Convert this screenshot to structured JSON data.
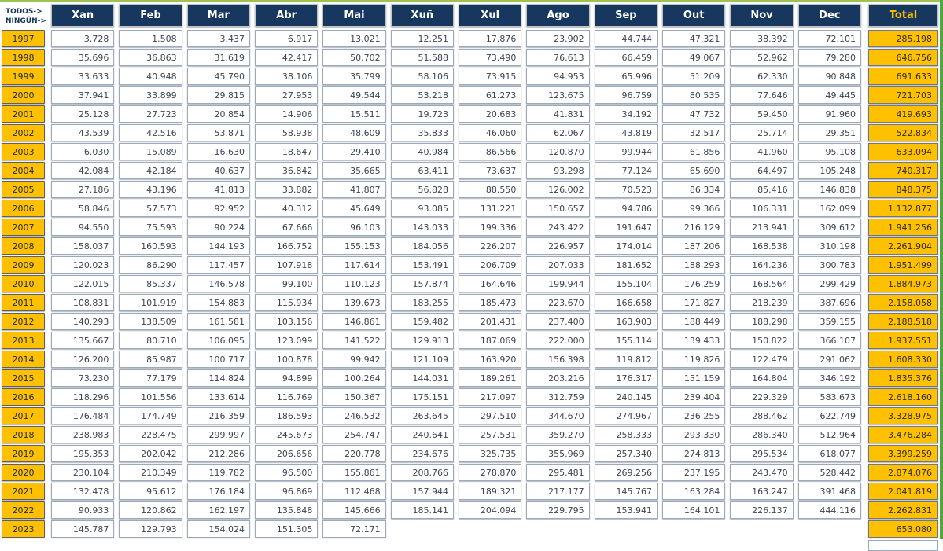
{
  "controls": {
    "select_all_label": "TODOS->",
    "select_none_label": "NINGÚN->"
  },
  "table": {
    "month_headers": [
      "Xan",
      "Feb",
      "Mar",
      "Abr",
      "Mai",
      "Xuñ",
      "Xul",
      "Ago",
      "Sep",
      "Out",
      "Nov",
      "Dec"
    ],
    "total_header": "Total",
    "rows": [
      {
        "year": "1997",
        "values": [
          "3.728",
          "1.508",
          "3.437",
          "6.917",
          "13.021",
          "12.251",
          "17.876",
          "23.902",
          "44.744",
          "47.321",
          "38.392",
          "72.101"
        ],
        "total": "285.198"
      },
      {
        "year": "1998",
        "values": [
          "35.696",
          "36.863",
          "31.619",
          "42.417",
          "50.702",
          "51.588",
          "73.490",
          "76.613",
          "66.459",
          "49.067",
          "52.962",
          "79.280"
        ],
        "total": "646.756"
      },
      {
        "year": "1999",
        "values": [
          "33.633",
          "40.948",
          "45.790",
          "38.106",
          "35.799",
          "58.106",
          "73.915",
          "94.953",
          "65.996",
          "51.209",
          "62.330",
          "90.848"
        ],
        "total": "691.633"
      },
      {
        "year": "2000",
        "values": [
          "37.941",
          "33.899",
          "29.815",
          "27.953",
          "49.544",
          "53.218",
          "61.273",
          "123.675",
          "96.759",
          "80.535",
          "77.646",
          "49.445"
        ],
        "total": "721.703"
      },
      {
        "year": "2001",
        "values": [
          "25.128",
          "27.723",
          "20.854",
          "14.906",
          "15.511",
          "19.723",
          "20.683",
          "41.831",
          "34.192",
          "47.732",
          "59.450",
          "91.960"
        ],
        "total": "419.693"
      },
      {
        "year": "2002",
        "values": [
          "43.539",
          "42.516",
          "53.871",
          "58.938",
          "48.609",
          "35.833",
          "46.060",
          "62.067",
          "43.819",
          "32.517",
          "25.714",
          "29.351"
        ],
        "total": "522.834"
      },
      {
        "year": "2003",
        "values": [
          "6.030",
          "15.089",
          "16.630",
          "18.647",
          "29.410",
          "40.984",
          "86.566",
          "120.870",
          "99.944",
          "61.856",
          "41.960",
          "95.108"
        ],
        "total": "633.094"
      },
      {
        "year": "2004",
        "values": [
          "42.084",
          "42.184",
          "40.637",
          "36.842",
          "35.665",
          "63.411",
          "73.637",
          "93.298",
          "77.124",
          "65.690",
          "64.497",
          "105.248"
        ],
        "total": "740.317"
      },
      {
        "year": "2005",
        "values": [
          "27.186",
          "43.196",
          "41.813",
          "33.882",
          "41.807",
          "56.828",
          "88.550",
          "126.002",
          "70.523",
          "86.334",
          "85.416",
          "146.838"
        ],
        "total": "848.375"
      },
      {
        "year": "2006",
        "values": [
          "58.846",
          "57.573",
          "92.952",
          "40.312",
          "45.649",
          "93.085",
          "131.221",
          "150.657",
          "94.786",
          "99.366",
          "106.331",
          "162.099"
        ],
        "total": "1.132.877"
      },
      {
        "year": "2007",
        "values": [
          "94.550",
          "75.593",
          "90.224",
          "67.666",
          "96.103",
          "143.033",
          "199.336",
          "243.422",
          "191.647",
          "216.129",
          "213.941",
          "309.612"
        ],
        "total": "1.941.256"
      },
      {
        "year": "2008",
        "values": [
          "158.037",
          "160.593",
          "144.193",
          "166.752",
          "155.153",
          "184.056",
          "226.207",
          "226.957",
          "174.014",
          "187.206",
          "168.538",
          "310.198"
        ],
        "total": "2.261.904"
      },
      {
        "year": "2009",
        "values": [
          "120.023",
          "86.290",
          "117.457",
          "107.918",
          "117.614",
          "153.491",
          "206.709",
          "207.033",
          "181.652",
          "188.293",
          "164.236",
          "300.783"
        ],
        "total": "1.951.499"
      },
      {
        "year": "2010",
        "values": [
          "122.015",
          "85.337",
          "146.578",
          "99.100",
          "110.123",
          "157.874",
          "164.646",
          "199.944",
          "155.104",
          "176.259",
          "168.564",
          "299.429"
        ],
        "total": "1.884.973"
      },
      {
        "year": "2011",
        "values": [
          "108.831",
          "101.919",
          "154.883",
          "115.934",
          "139.673",
          "183.255",
          "185.473",
          "223.670",
          "166.658",
          "171.827",
          "218.239",
          "387.696"
        ],
        "total": "2.158.058"
      },
      {
        "year": "2012",
        "values": [
          "140.293",
          "138.509",
          "161.581",
          "103.156",
          "146.861",
          "159.482",
          "201.431",
          "237.400",
          "163.903",
          "188.449",
          "188.298",
          "359.155"
        ],
        "total": "2.188.518"
      },
      {
        "year": "2013",
        "values": [
          "135.667",
          "80.710",
          "106.095",
          "123.099",
          "141.522",
          "129.913",
          "187.069",
          "222.000",
          "155.114",
          "139.433",
          "150.822",
          "366.107"
        ],
        "total": "1.937.551"
      },
      {
        "year": "2014",
        "values": [
          "126.200",
          "85.987",
          "100.717",
          "100.878",
          "99.942",
          "121.109",
          "163.920",
          "156.398",
          "119.812",
          "119.826",
          "122.479",
          "291.062"
        ],
        "total": "1.608.330"
      },
      {
        "year": "2015",
        "values": [
          "73.230",
          "77.179",
          "114.824",
          "94.899",
          "100.264",
          "144.031",
          "189.261",
          "203.216",
          "176.317",
          "151.159",
          "164.804",
          "346.192"
        ],
        "total": "1.835.376"
      },
      {
        "year": "2016",
        "values": [
          "118.296",
          "101.556",
          "133.614",
          "116.769",
          "150.367",
          "175.151",
          "217.097",
          "312.759",
          "240.145",
          "239.404",
          "229.329",
          "583.673"
        ],
        "total": "2.618.160"
      },
      {
        "year": "2017",
        "values": [
          "176.484",
          "174.749",
          "216.359",
          "186.593",
          "246.532",
          "263.645",
          "297.510",
          "344.670",
          "274.967",
          "236.255",
          "288.462",
          "622.749"
        ],
        "total": "3.328.975"
      },
      {
        "year": "2018",
        "values": [
          "238.983",
          "228.475",
          "299.997",
          "245.673",
          "254.747",
          "240.641",
          "257.531",
          "359.270",
          "258.333",
          "293.330",
          "286.340",
          "512.964"
        ],
        "total": "3.476.284"
      },
      {
        "year": "2019",
        "values": [
          "195.353",
          "202.042",
          "212.286",
          "206.656",
          "220.778",
          "234.676",
          "325.735",
          "355.969",
          "257.340",
          "274.813",
          "295.534",
          "618.077"
        ],
        "total": "3.399.259"
      },
      {
        "year": "2020",
        "values": [
          "230.104",
          "210.349",
          "119.782",
          "96.500",
          "155.861",
          "208.766",
          "278.870",
          "295.481",
          "269.256",
          "237.195",
          "243.470",
          "528.442"
        ],
        "total": "2.874.076"
      },
      {
        "year": "2021",
        "values": [
          "132.478",
          "95.612",
          "176.184",
          "96.869",
          "112.468",
          "157.944",
          "189.321",
          "217.177",
          "145.767",
          "163.284",
          "163.247",
          "391.468"
        ],
        "total": "2.041.819"
      },
      {
        "year": "2022",
        "values": [
          "90.933",
          "120.862",
          "162.197",
          "135.848",
          "145.666",
          "185.141",
          "204.094",
          "229.795",
          "153.941",
          "164.101",
          "226.137",
          "444.116"
        ],
        "total": "2.262.831"
      },
      {
        "year": "2023",
        "values": [
          "145.787",
          "129.793",
          "154.024",
          "151.305",
          "72.171"
        ],
        "total": "653.080"
      }
    ]
  },
  "colors": {
    "header_bg": "#17375E",
    "accent_gold": "#FFC000",
    "top_strip_green": "#9DC355",
    "right_strip_green": "#4FA83D"
  }
}
